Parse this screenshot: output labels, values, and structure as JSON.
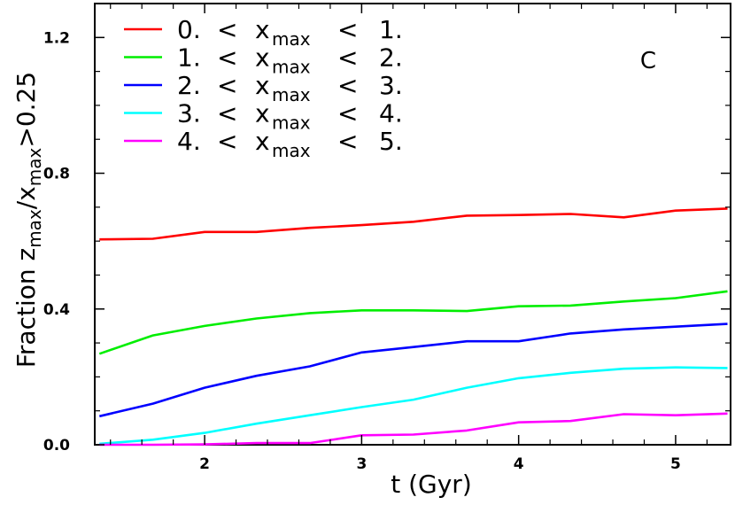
{
  "chart_data": {
    "type": "line",
    "xlabel": "t (Gyr)",
    "ylabel": {
      "prefix": "Fraction z",
      "sub1": "max",
      "mid": "/x",
      "sub2": "max",
      "suffix": ">0.25"
    },
    "panel_label": "C",
    "xlim": [
      1.3,
      5.35
    ],
    "ylim": [
      0.0,
      1.3
    ],
    "x_ticks": [
      2,
      3,
      4,
      5
    ],
    "y_ticks": [
      0.0,
      0.4,
      0.8,
      1.2
    ],
    "x_tick_labels": [
      "2",
      "3",
      "4",
      "5"
    ],
    "y_tick_labels": [
      "0.0",
      "0.4",
      "0.8",
      "1.2"
    ],
    "x": [
      1.33,
      1.67,
      2.0,
      2.33,
      2.67,
      3.0,
      3.33,
      3.67,
      4.0,
      4.33,
      4.67,
      5.0,
      5.33
    ],
    "legend_position": "top-left",
    "series": [
      {
        "label": {
          "lo": "0.",
          "lt1": "<",
          "var": "x",
          "sub": "max",
          "lt2": "<",
          "hi": "1."
        },
        "color": "#ff0000",
        "values": [
          0.605,
          0.607,
          0.627,
          0.627,
          0.639,
          0.647,
          0.657,
          0.675,
          0.677,
          0.68,
          0.67,
          0.69,
          0.696
        ]
      },
      {
        "label": {
          "lo": "1.",
          "lt1": "<",
          "var": "x",
          "sub": "max",
          "lt2": "<",
          "hi": "2."
        },
        "color": "#00ee00",
        "values": [
          0.268,
          0.322,
          0.35,
          0.372,
          0.388,
          0.396,
          0.396,
          0.394,
          0.408,
          0.41,
          0.422,
          0.432,
          0.452
        ]
      },
      {
        "label": {
          "lo": "2.",
          "lt1": "<",
          "var": "x",
          "sub": "max",
          "lt2": "<",
          "hi": "3."
        },
        "color": "#0000ff",
        "values": [
          0.084,
          0.121,
          0.168,
          0.203,
          0.231,
          0.272,
          0.288,
          0.305,
          0.305,
          0.328,
          0.34,
          0.348,
          0.356
        ]
      },
      {
        "label": {
          "lo": "3.",
          "lt1": "<",
          "var": "x",
          "sub": "max",
          "lt2": "<",
          "hi": "4."
        },
        "color": "#00ffff",
        "values": [
          0.003,
          0.015,
          0.035,
          0.062,
          0.087,
          0.111,
          0.133,
          0.168,
          0.196,
          0.212,
          0.224,
          0.228,
          0.226
        ]
      },
      {
        "label": {
          "lo": "4.",
          "lt1": "<",
          "var": "x",
          "sub": "max",
          "lt2": "<",
          "hi": "5."
        },
        "color": "#ff00ff",
        "values": [
          0.0,
          0.0,
          0.001,
          0.005,
          0.005,
          0.028,
          0.03,
          0.042,
          0.066,
          0.07,
          0.09,
          0.087,
          0.092
        ]
      }
    ]
  }
}
